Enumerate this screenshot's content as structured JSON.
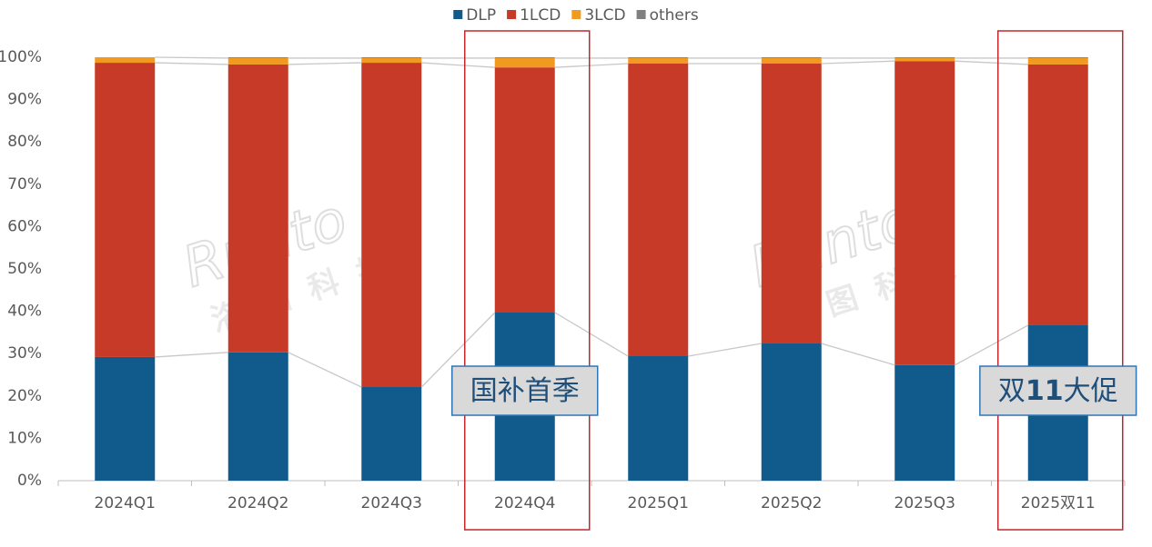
{
  "chart_data": {
    "type": "stacked_bar_percent",
    "categories": [
      "2024Q1",
      "2024Q2",
      "2024Q3",
      "2024Q4",
      "2025Q1",
      "2025Q2",
      "2025Q3",
      "2025双11"
    ],
    "series": [
      {
        "name": "DLP",
        "color": "#115a8c",
        "values": [
          29.2,
          30.3,
          22.1,
          39.7,
          29.4,
          32.4,
          27.3,
          36.7
        ]
      },
      {
        "name": "1LCD",
        "color": "#c83a28",
        "values": [
          69.5,
          68.0,
          76.6,
          57.9,
          69.1,
          66.1,
          71.8,
          61.6
        ]
      },
      {
        "name": "3LCD",
        "color": "#f29a1f",
        "values": [
          1.3,
          1.5,
          1.1,
          2.2,
          1.3,
          1.3,
          0.7,
          1.5
        ]
      },
      {
        "name": "others",
        "color": "#808080",
        "values": [
          0.0,
          0.2,
          0.2,
          0.2,
          0.2,
          0.2,
          0.2,
          0.2
        ]
      }
    ],
    "ylim": [
      0,
      100
    ],
    "yticks": [
      {
        "value": 0,
        "label": "0%"
      },
      {
        "value": 10,
        "label": "10%"
      },
      {
        "value": 20,
        "label": "20%"
      },
      {
        "value": 30,
        "label": "30%"
      },
      {
        "value": 40,
        "label": "40%"
      },
      {
        "value": 50,
        "label": "50%"
      },
      {
        "value": 60,
        "label": "60%"
      },
      {
        "value": 70,
        "label": "70%"
      },
      {
        "value": 80,
        "label": "80%"
      },
      {
        "value": 90,
        "label": "90%"
      },
      {
        "value": 100,
        "label": "100%"
      }
    ],
    "grid": false,
    "legend": "top",
    "annotations": [
      {
        "text": "国补首季",
        "category": "2024Q4"
      },
      {
        "text": "双11大促",
        "category": "2025双11"
      }
    ],
    "watermark": [
      "Runto",
      "洛图科技"
    ]
  }
}
